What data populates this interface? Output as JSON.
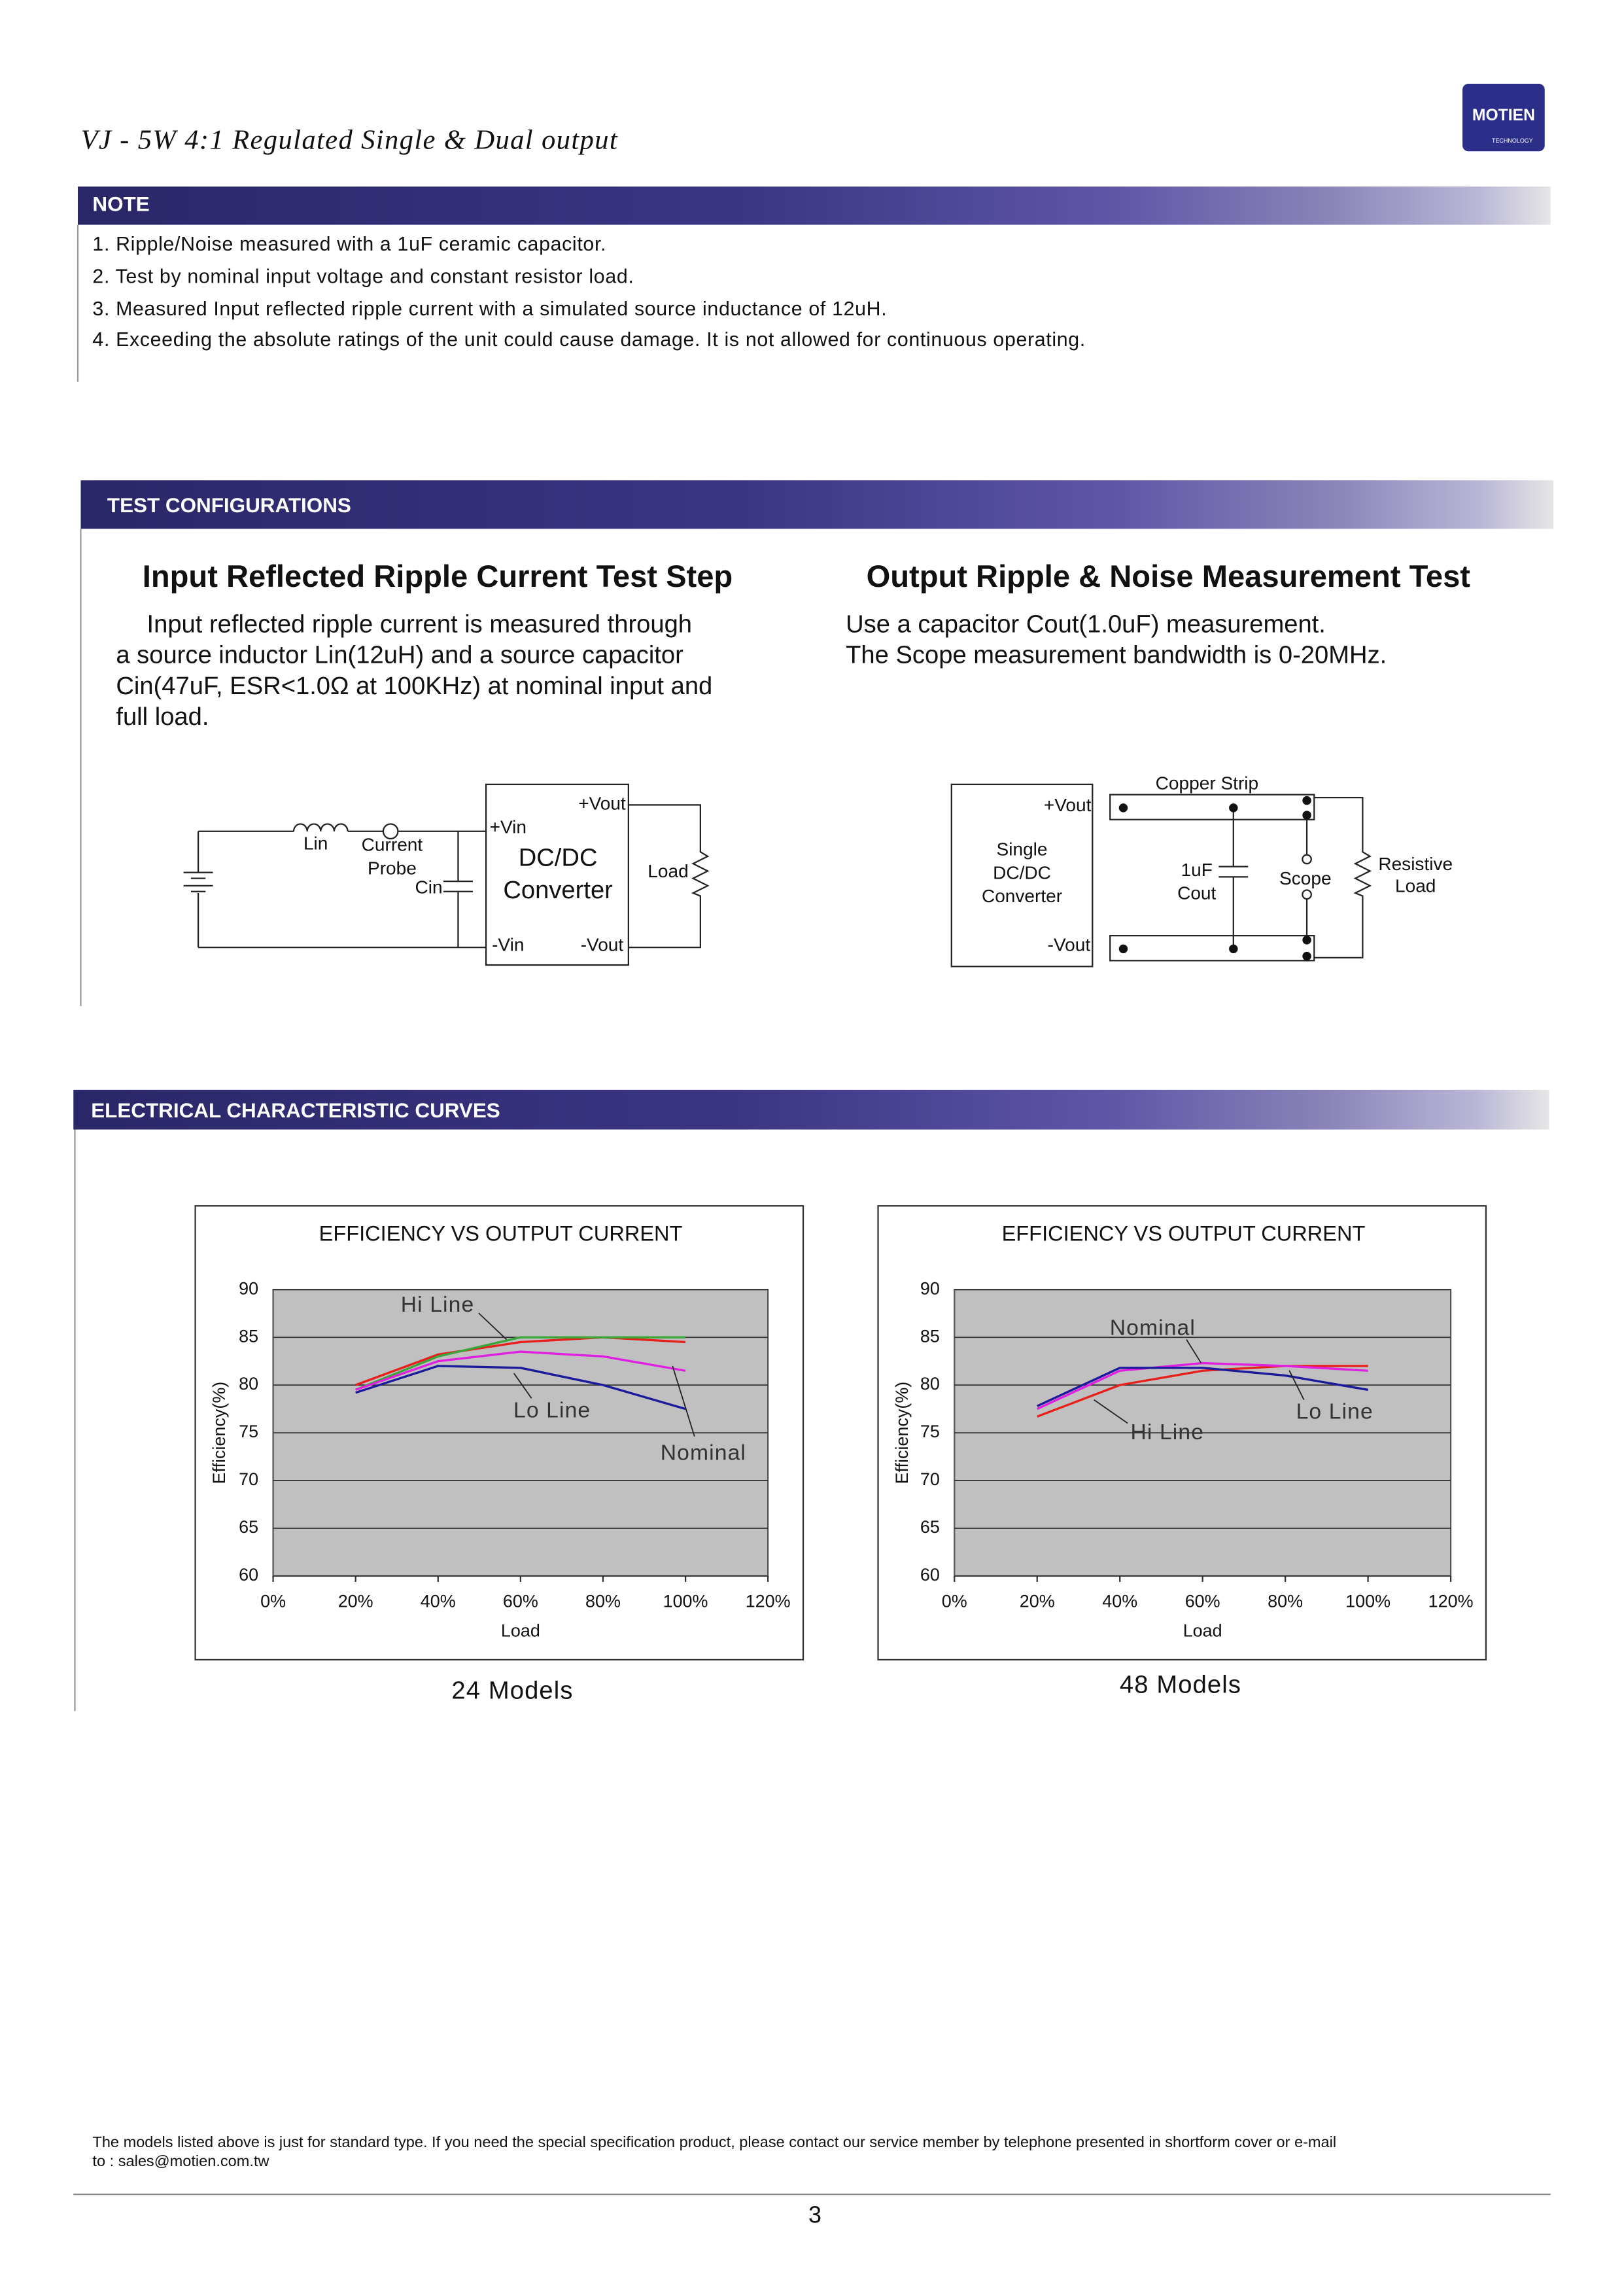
{
  "header": {
    "title": "VJ - 5W 4:1 Regulated Single & Dual output",
    "logo": "MOTIEN",
    "logo_sub": "TECHNOLOGY"
  },
  "note": {
    "title": "NOTE",
    "items": [
      "1. Ripple/Noise measured with a 1uF ceramic capacitor.",
      "2. Test by nominal input voltage and constant resistor load.",
      "3. Measured Input reflected ripple current with a simulated source inductance of 12uH.",
      "4. Exceeding the absolute ratings of the unit could cause damage.  It is not allowed for continuous operating."
    ]
  },
  "test": {
    "title": "TEST CONFIGURATIONS",
    "left": {
      "heading": "Input Reflected Ripple Current Test Step",
      "lines": [
        "Input reflected ripple current is measured through",
        "a source inductor Lin(12uH) and a source capacitor",
        "Cin(47uF, ESR<1.0Ω at 100KHz) at nominal input and",
        "full load."
      ],
      "labels": [
        "+Vout",
        "+Vin",
        "DC/DC",
        "Converter",
        "Lin",
        "Current",
        "Probe",
        "Cin",
        "Load",
        "-Vin",
        "-Vout"
      ]
    },
    "right": {
      "heading": "Output Ripple & Noise Measurement Test",
      "lines": [
        "Use a capacitor Cout(1.0uF) measurement.",
        "The Scope measurement bandwidth is 0-20MHz."
      ],
      "labels": [
        "+Vout",
        "Copper Strip",
        "Single",
        "DC/DC",
        "Converter",
        "1uF",
        "Cout",
        "Scope",
        "Resistive",
        "Load",
        "-Vout"
      ]
    }
  },
  "curves": {
    "title": "ELECTRICAL CHARACTERISTIC CURVES",
    "captions": [
      "24 Models",
      "48 Models"
    ]
  },
  "chart_data": [
    {
      "type": "line",
      "title": "EFFICIENCY VS OUTPUT CURRENT",
      "xlabel": "Load",
      "ylabel": "Efficiency(%)",
      "x": [
        20,
        40,
        60,
        80,
        100
      ],
      "xlim": [
        0,
        120
      ],
      "xticks": [
        {
          "value": 0,
          "label": "0%"
        },
        {
          "value": 20,
          "label": "20%"
        },
        {
          "value": 40,
          "label": "40%"
        },
        {
          "value": 60,
          "label": "60%"
        },
        {
          "value": 80,
          "label": "80%"
        },
        {
          "value": 100,
          "label": "100%"
        },
        {
          "value": 120,
          "label": "120%"
        }
      ],
      "ylim": [
        60,
        90
      ],
      "yticks": [
        60,
        65,
        70,
        75,
        80,
        85,
        90
      ],
      "grid": true,
      "series": [
        {
          "name": "Hi Line",
          "color": "#e8201c",
          "values": [
            80,
            83.2,
            84.5,
            85,
            84.5
          ]
        },
        {
          "color": "#3aa63a",
          "values": [
            79.5,
            83,
            85,
            85,
            85
          ]
        },
        {
          "name": "Nominal",
          "color": "#e020e0",
          "values": [
            79.5,
            82.5,
            83.5,
            83,
            81.5
          ]
        },
        {
          "name": "Lo Line",
          "color": "#1a1a9a",
          "values": [
            79.2,
            82,
            81.8,
            80,
            77.5
          ]
        }
      ]
    },
    {
      "type": "line",
      "title": "EFFICIENCY VS OUTPUT CURRENT",
      "xlabel": "Load",
      "ylabel": "Efficiency(%)",
      "x": [
        20,
        40,
        60,
        80,
        100
      ],
      "xlim": [
        0,
        120
      ],
      "xticks": [
        {
          "value": 0,
          "label": "0%"
        },
        {
          "value": 20,
          "label": "20%"
        },
        {
          "value": 40,
          "label": "40%"
        },
        {
          "value": 60,
          "label": "60%"
        },
        {
          "value": 80,
          "label": "80%"
        },
        {
          "value": 100,
          "label": "100%"
        },
        {
          "value": 120,
          "label": "120%"
        }
      ],
      "ylim": [
        60,
        90
      ],
      "yticks": [
        60,
        65,
        70,
        75,
        80,
        85,
        90
      ],
      "grid": true,
      "series": [
        {
          "name": "Hi Line",
          "color": "#e8201c",
          "values": [
            76.7,
            80,
            81.5,
            82,
            82
          ]
        },
        {
          "name": "Nominal",
          "color": "#e020e0",
          "values": [
            77.5,
            81.5,
            82.3,
            82,
            81.5
          ]
        },
        {
          "name": "Lo Line",
          "color": "#1a1a9a",
          "values": [
            77.8,
            81.8,
            81.8,
            81,
            79.5
          ]
        }
      ]
    }
  ],
  "footer": {
    "lines": [
      "The models listed above is just for standard type. If you need the special specification product, please contact our service member by telephone presented in shortform cover or e-mail",
      "to : sales@motien.com.tw"
    ],
    "page": "3"
  }
}
